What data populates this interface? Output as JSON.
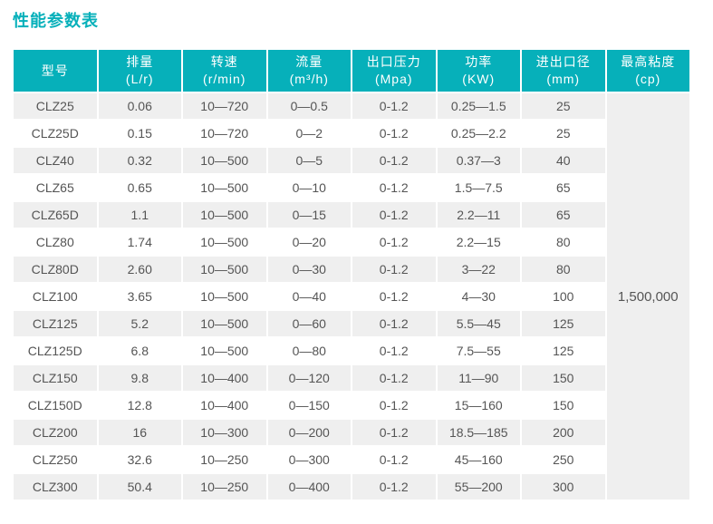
{
  "page": {
    "title": "性能参数表"
  },
  "colors": {
    "accent": "#06b0ba",
    "row_alt": "#efefef",
    "text": "#555555",
    "header_text": "#ffffff"
  },
  "table": {
    "columns": [
      {
        "key": "model",
        "name": "型号",
        "unit": ""
      },
      {
        "key": "displacement",
        "name": "排量",
        "unit": "(L/r)"
      },
      {
        "key": "speed",
        "name": "转速",
        "unit": "(r/min)"
      },
      {
        "key": "flow",
        "name": "流量",
        "unit": "(m³/h)"
      },
      {
        "key": "outlet-pressure",
        "name": "出口压力",
        "unit": "(Mpa)"
      },
      {
        "key": "power",
        "name": "功率",
        "unit": "(KW)"
      },
      {
        "key": "port-diameter",
        "name": "进出口径",
        "unit": "(mm)"
      },
      {
        "key": "max-viscosity",
        "name": "最高粘度",
        "unit": "(cp)"
      }
    ],
    "rows": [
      [
        "CLZ25",
        "0.06",
        "10—720",
        "0—0.5",
        "0-1.2",
        "0.25—1.5",
        "25"
      ],
      [
        "CLZ25D",
        "0.15",
        "10—720",
        "0—2",
        "0-1.2",
        "0.25—2.2",
        "25"
      ],
      [
        "CLZ40",
        "0.32",
        "10—500",
        "0—5",
        "0-1.2",
        "0.37—3",
        "40"
      ],
      [
        "CLZ65",
        "0.65",
        "10—500",
        "0—10",
        "0-1.2",
        "1.5—7.5",
        "65"
      ],
      [
        "CLZ65D",
        "1.1",
        "10—500",
        "0—15",
        "0-1.2",
        "2.2—11",
        "65"
      ],
      [
        "CLZ80",
        "1.74",
        "10—500",
        "0—20",
        "0-1.2",
        "2.2—15",
        "80"
      ],
      [
        "CLZ80D",
        "2.60",
        "10—500",
        "0—30",
        "0-1.2",
        "3—22",
        "80"
      ],
      [
        "CLZ100",
        "3.65",
        "10—500",
        "0—40",
        "0-1.2",
        "4—30",
        "100"
      ],
      [
        "CLZ125",
        "5.2",
        "10—500",
        "0—60",
        "0-1.2",
        "5.5—45",
        "125"
      ],
      [
        "CLZ125D",
        "6.8",
        "10—500",
        "0—80",
        "0-1.2",
        "7.5—55",
        "125"
      ],
      [
        "CLZ150",
        "9.8",
        "10—400",
        "0—120",
        "0-1.2",
        "11—90",
        "150"
      ],
      [
        "CLZ150D",
        "12.8",
        "10—400",
        "0—150",
        "0-1.2",
        "15—160",
        "150"
      ],
      [
        "CLZ200",
        "16",
        "10—300",
        "0—200",
        "0-1.2",
        "18.5—185",
        "200"
      ],
      [
        "CLZ250",
        "32.6",
        "10—250",
        "0—300",
        "0-1.2",
        "45—160",
        "250"
      ],
      [
        "CLZ300",
        "50.4",
        "10—250",
        "0—400",
        "0-1.2",
        "55—200",
        "300"
      ]
    ],
    "merged_max_viscosity": "1,500,000"
  }
}
